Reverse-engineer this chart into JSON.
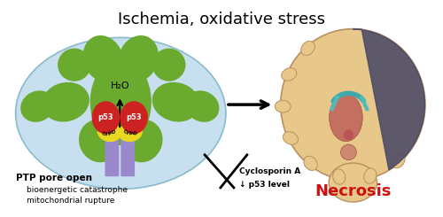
{
  "title": "Ischemia, oxidative stress",
  "title_fontsize": 13,
  "background_color": "#ffffff",
  "mito_color": "#c8dff0",
  "cristae_color": "#6aaa2e",
  "p53_color": "#cc2222",
  "cypd_color": "#e8d820",
  "ptp_color": "#9988cc",
  "necrosis_text": "Necrosis",
  "necrosis_color": "#cc1111",
  "necrosis_fontsize": 13,
  "brain_fill": "#e8c88a",
  "brain_edge": "#b89060",
  "brain_dark": "#4a4a66",
  "label_ptp": "PTP pore open",
  "label_bio1": "bioenergetic catastrophe",
  "label_bio2": "mitochondrial rupture",
  "label_cyclo1": "Cyclosporin A",
  "label_cyclo2": "↓ p53 level",
  "h2o_label": "H₂O"
}
